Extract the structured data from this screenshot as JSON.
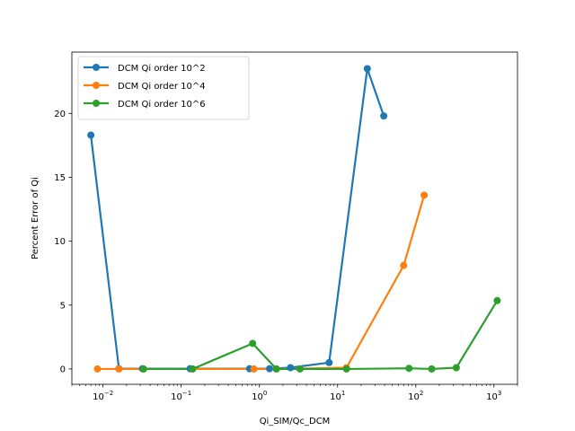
{
  "chart_data": {
    "type": "line",
    "title": "",
    "xlabel": "Qi_SIM/Qc_DCM",
    "ylabel": "Percent Error of Qi",
    "xscale": "log",
    "xlim": [
      0.004,
      2000
    ],
    "ylim": [
      -1.2,
      24.8
    ],
    "grid": false,
    "legend_position": "upper-left",
    "x_ticks": [
      {
        "value": 0.01,
        "base": "10",
        "exp": "−2"
      },
      {
        "value": 0.1,
        "base": "10",
        "exp": "−1"
      },
      {
        "value": 1,
        "base": "10",
        "exp": "0"
      },
      {
        "value": 10,
        "base": "10",
        "exp": "1"
      },
      {
        "value": 100,
        "base": "10",
        "exp": "2"
      },
      {
        "value": 1000,
        "base": "10",
        "exp": "3"
      }
    ],
    "y_ticks": [
      0,
      5,
      10,
      15,
      20
    ],
    "series": [
      {
        "name": "DCM Qi order 10^2",
        "color": "#1f77b4",
        "points": [
          {
            "x": 0.007,
            "y": 18.3
          },
          {
            "x": 0.016,
            "y": 0.02
          },
          {
            "x": 0.032,
            "y": 0.02
          },
          {
            "x": 0.13,
            "y": 0.02
          },
          {
            "x": 0.75,
            "y": 0.02
          },
          {
            "x": 1.35,
            "y": 0.02
          },
          {
            "x": 2.5,
            "y": 0.1
          },
          {
            "x": 7.8,
            "y": 0.5
          },
          {
            "x": 24,
            "y": 23.5
          },
          {
            "x": 39,
            "y": 19.8
          }
        ]
      },
      {
        "name": "DCM Qi order 10^4",
        "color": "#ff7f0e",
        "points": [
          {
            "x": 0.0085,
            "y": 0.0
          },
          {
            "x": 0.016,
            "y": 0.0
          },
          {
            "x": 0.033,
            "y": 0.0
          },
          {
            "x": 0.14,
            "y": 0.0
          },
          {
            "x": 0.85,
            "y": 0.0
          },
          {
            "x": 1.65,
            "y": 0.0
          },
          {
            "x": 13,
            "y": 0.1
          },
          {
            "x": 70,
            "y": 8.1
          },
          {
            "x": 128,
            "y": 13.6
          }
        ]
      },
      {
        "name": "DCM Qi order 10^6",
        "color": "#2ca02c",
        "points": [
          {
            "x": 0.033,
            "y": 0.0
          },
          {
            "x": 0.14,
            "y": 0.0
          },
          {
            "x": 0.82,
            "y": 2.0
          },
          {
            "x": 1.65,
            "y": 0.0
          },
          {
            "x": 3.3,
            "y": 0.0
          },
          {
            "x": 13,
            "y": 0.0
          },
          {
            "x": 82,
            "y": 0.05
          },
          {
            "x": 160,
            "y": 0.0
          },
          {
            "x": 330,
            "y": 0.1
          },
          {
            "x": 1100,
            "y": 5.35
          }
        ]
      }
    ]
  }
}
